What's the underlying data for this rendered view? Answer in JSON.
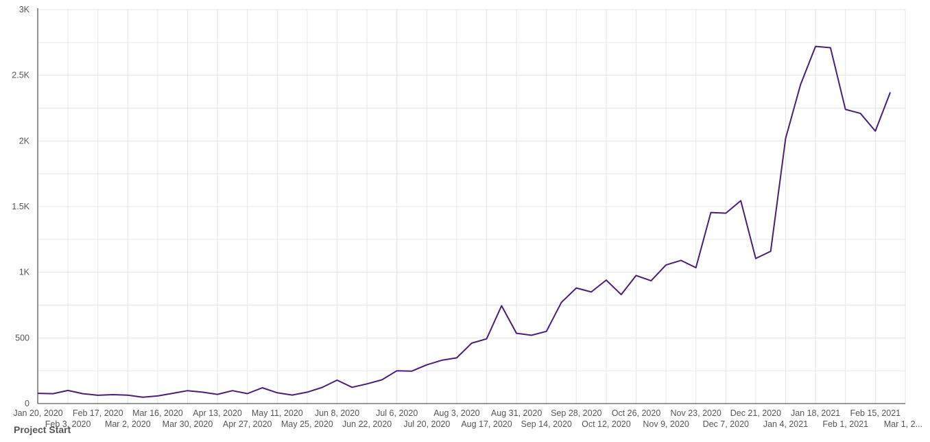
{
  "chart_data": {
    "type": "line",
    "xlabel": "Project Start",
    "ylabel": "",
    "ylim": [
      0,
      3000
    ],
    "y_ticks": [
      0,
      500,
      1000,
      1500,
      2000,
      2500,
      3000
    ],
    "y_tick_labels": [
      "0",
      "500",
      "1K",
      "1.5K",
      "2K",
      "2.5K",
      "3K"
    ],
    "x_tick_labels": [
      "Jan 20, 2020",
      "Feb 3, 2020",
      "Feb 17, 2020",
      "Mar 2, 2020",
      "Mar 16, 2020",
      "Mar 30, 2020",
      "Apr 13, 2020",
      "Apr 27, 2020",
      "May 11, 2020",
      "May 25, 2020",
      "Jun 8, 2020",
      "Jun 22, 2020",
      "Jul 6, 2020",
      "Jul 20, 2020",
      "Aug 3, 2020",
      "Aug 17, 2020",
      "Aug 31, 2020",
      "Sep 14, 2020",
      "Sep 28, 2020",
      "Oct 12, 2020",
      "Oct 26, 2020",
      "Nov 9, 2020",
      "Nov 23, 2020",
      "Dec 7, 2020",
      "Dec 21, 2020",
      "Jan 4, 2021",
      "Jan 18, 2021",
      "Feb 1, 2021",
      "Feb 15, 2021",
      "Mar 1, 2..."
    ],
    "grid": true,
    "color": "#4b1c7a",
    "x": [
      "2020-01-20",
      "2020-01-27",
      "2020-02-03",
      "2020-02-10",
      "2020-02-17",
      "2020-02-24",
      "2020-03-02",
      "2020-03-09",
      "2020-03-16",
      "2020-03-23",
      "2020-03-30",
      "2020-04-06",
      "2020-04-13",
      "2020-04-20",
      "2020-04-27",
      "2020-05-04",
      "2020-05-11",
      "2020-05-18",
      "2020-05-25",
      "2020-06-01",
      "2020-06-08",
      "2020-06-15",
      "2020-06-22",
      "2020-06-29",
      "2020-07-06",
      "2020-07-13",
      "2020-07-20",
      "2020-07-27",
      "2020-08-03",
      "2020-08-10",
      "2020-08-17",
      "2020-08-24",
      "2020-08-31",
      "2020-09-07",
      "2020-09-14",
      "2020-09-21",
      "2020-09-28",
      "2020-10-05",
      "2020-10-12",
      "2020-10-19",
      "2020-10-26",
      "2020-11-02",
      "2020-11-09",
      "2020-11-16",
      "2020-11-23",
      "2020-11-30",
      "2020-12-07",
      "2020-12-14",
      "2020-12-21",
      "2020-12-28",
      "2021-01-04",
      "2021-01-11",
      "2021-01-18",
      "2021-01-25",
      "2021-02-01",
      "2021-02-08",
      "2021-02-15",
      "2021-02-22"
    ],
    "series": [
      {
        "values": [
          78,
          75,
          100,
          75,
          63,
          68,
          64,
          48,
          58,
          78,
          98,
          87,
          70,
          98,
          76,
          120,
          82,
          65,
          87,
          123,
          178,
          124,
          150,
          181,
          250,
          247,
          295,
          330,
          348,
          460,
          493,
          745,
          535,
          520,
          550,
          770,
          880,
          850,
          940,
          830,
          975,
          935,
          1055,
          1090,
          1035,
          1455,
          1450,
          1545,
          1105,
          1160,
          2020,
          2430,
          2720,
          2710,
          2240,
          2210,
          2075,
          2370
        ]
      }
    ]
  }
}
